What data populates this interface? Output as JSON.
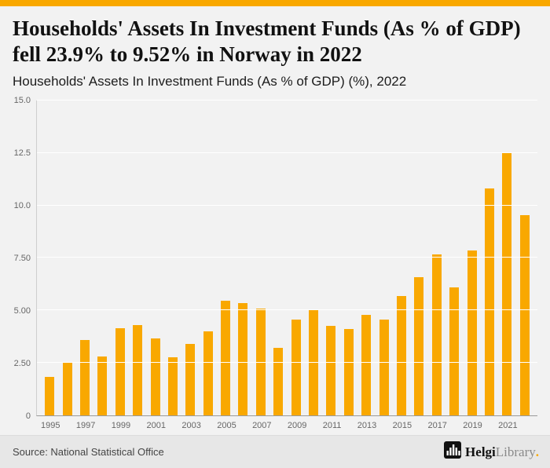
{
  "accent_color": "#F9A800",
  "page_bg": "#F2F2F2",
  "header": {
    "title": "Households' Assets In Investment Funds (As % of GDP) fell 23.9% to 9.52% in Norway in 2022",
    "subtitle": "Households' Assets In Investment Funds (As % of GDP) (%), 2022"
  },
  "chart_data": {
    "type": "bar",
    "title": "Households' Assets In Investment Funds (As % of GDP) (%), 2022",
    "categories": [
      1995,
      1996,
      1997,
      1998,
      1999,
      2000,
      2001,
      2002,
      2003,
      2004,
      2005,
      2006,
      2007,
      2008,
      2009,
      2010,
      2011,
      2012,
      2013,
      2014,
      2015,
      2016,
      2017,
      2018,
      2019,
      2020,
      2021,
      2022
    ],
    "values": [
      1.85,
      2.5,
      3.6,
      2.8,
      4.15,
      4.3,
      3.65,
      2.75,
      3.4,
      4.0,
      5.45,
      5.35,
      5.1,
      3.2,
      4.55,
      5.05,
      4.25,
      4.1,
      4.8,
      4.55,
      5.7,
      6.6,
      7.65,
      6.1,
      7.85,
      10.8,
      12.5,
      9.52
    ],
    "bar_color": "#F9A800",
    "xlabel": "",
    "ylabel": "",
    "ylim": [
      0,
      15
    ],
    "yticks": [
      0,
      2.5,
      5.0,
      7.5,
      10.0,
      12.5,
      15.0
    ],
    "ytick_labels": [
      "0",
      "2.50",
      "5.00",
      "7.50",
      "10.0",
      "12.5",
      "15.0"
    ],
    "xtick_labels": [
      "1995",
      "1997",
      "1999",
      "2001",
      "2003",
      "2005",
      "2007",
      "2009",
      "2011",
      "2013",
      "2015",
      "2017",
      "2019",
      "2021"
    ],
    "grid": true,
    "legend": false
  },
  "footer": {
    "source_text": "Source: National Statistical Office",
    "logo_icon": "bar-chart-icon",
    "logo_text_primary": "Helgi",
    "logo_text_secondary": "Library",
    "logo_period": "."
  }
}
